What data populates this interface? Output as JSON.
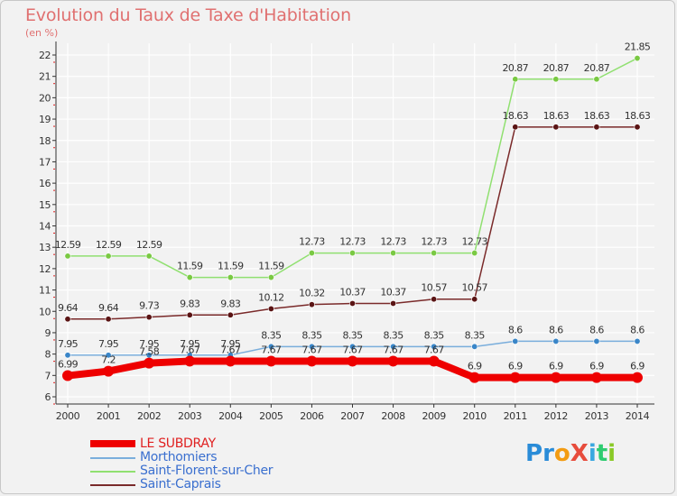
{
  "header": {
    "title": "Evolution du Taux de Taxe d'Habitation",
    "subtitle": "(en %)"
  },
  "colors": {
    "title": "#e07070",
    "axis": "#333333",
    "grid": "#ffffff",
    "plot_bg": "#f2f2f2",
    "tick_red": "#e02020"
  },
  "logo": {
    "letters": [
      {
        "char": "P",
        "color": "#2a8cd8"
      },
      {
        "char": "r",
        "color": "#2a8cd8"
      },
      {
        "char": "o",
        "color": "#f39c12"
      },
      {
        "char": "X",
        "color": "#e74c3c"
      },
      {
        "char": "i",
        "color": "#3aa8e0"
      },
      {
        "char": "t",
        "color": "#2ecc71"
      },
      {
        "char": "i",
        "color": "#8ac926"
      }
    ]
  },
  "chart_data": {
    "type": "line",
    "x": [
      2000,
      2001,
      2002,
      2003,
      2004,
      2005,
      2006,
      2007,
      2008,
      2009,
      2010,
      2011,
      2012,
      2013,
      2014
    ],
    "ylim": [
      6,
      22
    ],
    "yticks": [
      6,
      7,
      8,
      9,
      10,
      11,
      12,
      13,
      14,
      15,
      16,
      17,
      18,
      19,
      20,
      21,
      22
    ],
    "grid": true,
    "legend_position": "bottom-left",
    "series": [
      {
        "name": "Saint-Florent-sur-Cher",
        "color": "#90e070",
        "marker_color": "#7ac943",
        "values": [
          12.59,
          12.59,
          12.59,
          11.59,
          11.59,
          11.59,
          12.73,
          12.73,
          12.73,
          12.73,
          12.73,
          20.87,
          20.87,
          20.87,
          21.85
        ],
        "labels": [
          "12.59",
          "12.59",
          "12.59",
          "11.59",
          "11.59",
          "11.59",
          "12.73",
          "12.73",
          "12.73",
          "12.73",
          "12.73",
          "20.87",
          "20.87",
          "20.87",
          "21.85"
        ]
      },
      {
        "name": "Saint-Caprais",
        "color": "#7a2a2a",
        "marker_color": "#5a1414",
        "values": [
          9.64,
          9.64,
          9.73,
          9.83,
          9.83,
          10.12,
          10.32,
          10.37,
          10.37,
          10.57,
          10.57,
          18.63,
          18.63,
          18.63,
          18.63
        ],
        "labels": [
          "9.64",
          "9.64",
          "9.73",
          "9.83",
          "9.83",
          "10.12",
          "10.32",
          "10.37",
          "10.37",
          "10.57",
          "10.57",
          "18.63",
          "18.63",
          "18.63",
          "18.63"
        ]
      },
      {
        "name": "Morthomiers",
        "color": "#7aaedc",
        "marker_color": "#3a86c8",
        "values": [
          7.95,
          7.95,
          7.95,
          7.95,
          7.95,
          8.35,
          8.35,
          8.35,
          8.35,
          8.35,
          8.35,
          8.6,
          8.6,
          8.6,
          8.6
        ],
        "labels": [
          "7.95",
          "7.95",
          "7.95",
          "7.95",
          "7.95",
          "8.35",
          "8.35",
          "8.35",
          "8.35",
          "8.35",
          "8.35",
          "8.6",
          "8.6",
          "8.6",
          "8.6"
        ]
      },
      {
        "name": "LE SUBDRAY",
        "color": "#ee0000",
        "marker_color": "#ee0000",
        "values": [
          6.99,
          7.2,
          7.58,
          7.67,
          7.67,
          7.67,
          7.67,
          7.67,
          7.67,
          7.67,
          6.9,
          6.9,
          6.9,
          6.9,
          6.9
        ],
        "labels": [
          "6.99",
          "7.2",
          "7.58",
          "7.67",
          "7.67",
          "7.67",
          "7.67",
          "7.67",
          "7.67",
          "7.67",
          "6.9",
          "6.9",
          "6.9",
          "6.9",
          "6.9"
        ]
      }
    ]
  }
}
